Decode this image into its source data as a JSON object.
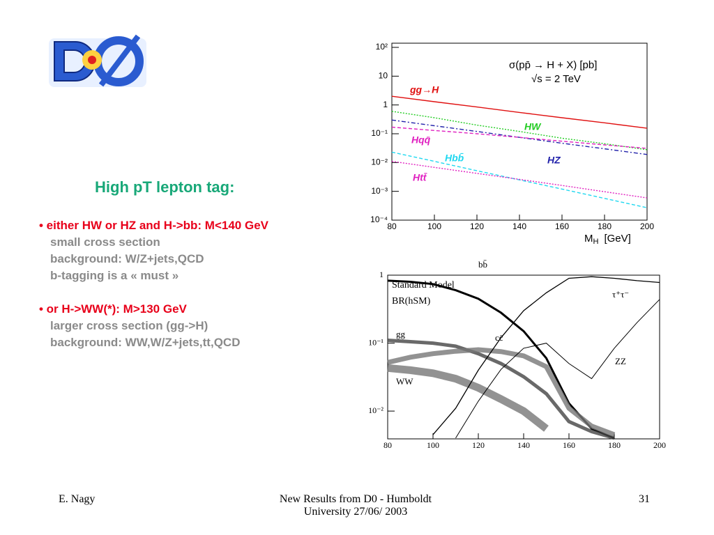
{
  "slide": {
    "heading": "High pT lepton tag:",
    "bullets": [
      {
        "head": "• either HW or HZ and H->bb: M<140 GeV",
        "items": [
          "small cross section",
          "background: W/Z+jets,QCD",
          "b-tagging is a « must »"
        ]
      },
      {
        "head": "• or H->WW(*): M>130 GeV",
        "items": [
          "larger cross section (gg->H)",
          "background: WW,W/Z+jets,tt,QCD"
        ]
      }
    ],
    "footer": {
      "author": "E. Nagy",
      "center": [
        "New Results from D0 - Humboldt",
        "University  27/06/ 2003"
      ],
      "page": "31"
    }
  },
  "chart_data": [
    {
      "type": "line",
      "title": [
        "σ(pp̄ → H + X)  [pb]",
        "√s = 2 TeV"
      ],
      "x_label": {
        "main": "M",
        "sub": "H",
        "unit": "[GeV]"
      },
      "log_y": true,
      "x": [
        80,
        100,
        120,
        140,
        160,
        180,
        200
      ],
      "xlim": [
        80,
        200
      ],
      "ylim": [
        0.0001,
        100
      ],
      "xticks": [
        80,
        100,
        120,
        140,
        160,
        180,
        200
      ],
      "yticks": [
        {
          "value": 0.0001,
          "label": "10⁻⁴"
        },
        {
          "value": 0.001,
          "label": "10⁻³"
        },
        {
          "value": 0.01,
          "label": "10⁻²"
        },
        {
          "value": 0.1,
          "label": "10⁻¹"
        },
        1,
        10,
        {
          "value": 100,
          "label": "10²"
        }
      ],
      "series": [
        {
          "name": "gg→H",
          "color": "#e01010",
          "values": [
            2.0,
            1.3,
            0.85,
            0.55,
            0.36,
            0.24,
            0.155
          ]
        },
        {
          "name": "HW",
          "color": "#22cc22",
          "values": [
            0.6,
            0.36,
            0.2,
            0.12,
            0.07,
            0.045,
            0.028
          ]
        },
        {
          "name": "HZ",
          "color": "#2222aa",
          "values": [
            0.3,
            0.19,
            0.12,
            0.075,
            0.047,
            0.03,
            0.019
          ]
        },
        {
          "name": "Hqq̄",
          "color": "#e020c0",
          "values": [
            0.17,
            0.13,
            0.1,
            0.075,
            0.055,
            0.041,
            0.031
          ]
        },
        {
          "name": "Hbb̄",
          "color": "#20d8f0",
          "values": [
            0.023,
            0.011,
            0.0052,
            0.0025,
            0.0012,
            0.00057,
            0.00027
          ]
        },
        {
          "name": "Htt̄",
          "color": "#e020c0",
          "values": [
            0.011,
            0.0068,
            0.0042,
            0.0026,
            0.0016,
            0.00097,
            0.00059
          ]
        }
      ]
    },
    {
      "type": "line",
      "notes": [
        "Standard Model",
        "BR(hSM)"
      ],
      "log_y": true,
      "x": [
        80,
        90,
        100,
        110,
        120,
        130,
        140,
        150,
        160,
        170,
        180,
        190,
        200
      ],
      "xlim": [
        80,
        200
      ],
      "ylim": [
        0.0039,
        1
      ],
      "xticks": [
        80,
        100,
        120,
        140,
        160,
        180,
        200
      ],
      "yticks": [
        1,
        {
          "value": 0.1,
          "label": "10⁻¹"
        },
        {
          "value": 0.01,
          "label": "10⁻²"
        }
      ],
      "series": [
        {
          "name": "bb̄",
          "color": "#000000",
          "values": [
            0.83,
            0.8,
            0.74,
            0.6,
            0.45,
            0.28,
            0.15,
            0.06,
            0.013,
            0.0055,
            0.004,
            null,
            null
          ]
        },
        {
          "name": "τ⁺τ⁻",
          "color": "#333333",
          "values": [
            0.11,
            0.105,
            0.1,
            0.09,
            0.07,
            0.05,
            0.032,
            0.018,
            0.007,
            0.005,
            0.004,
            null,
            null
          ]
        },
        {
          "name": "gg",
          "color": "#555555",
          "values": [
            0.052,
            0.062,
            0.07,
            0.076,
            0.08,
            0.075,
            0.065,
            0.045,
            0.011,
            0.006,
            0.0045,
            null,
            null
          ]
        },
        {
          "name": "cc̄",
          "color": "#666666",
          "values": [
            0.043,
            0.04,
            0.036,
            0.03,
            0.022,
            0.015,
            0.01,
            0.0055,
            null,
            null,
            null,
            null,
            null
          ]
        },
        {
          "name": "WW",
          "color": "#000000",
          "values": [
            null,
            null,
            0.0045,
            0.011,
            0.04,
            0.12,
            0.3,
            0.55,
            0.9,
            0.95,
            0.9,
            0.83,
            0.78
          ]
        },
        {
          "name": "ZZ",
          "color": "#000000",
          "values": [
            null,
            null,
            null,
            0.004,
            0.014,
            0.041,
            0.084,
            0.1,
            0.05,
            0.03,
            0.084,
            0.2,
            0.44
          ]
        }
      ]
    }
  ]
}
